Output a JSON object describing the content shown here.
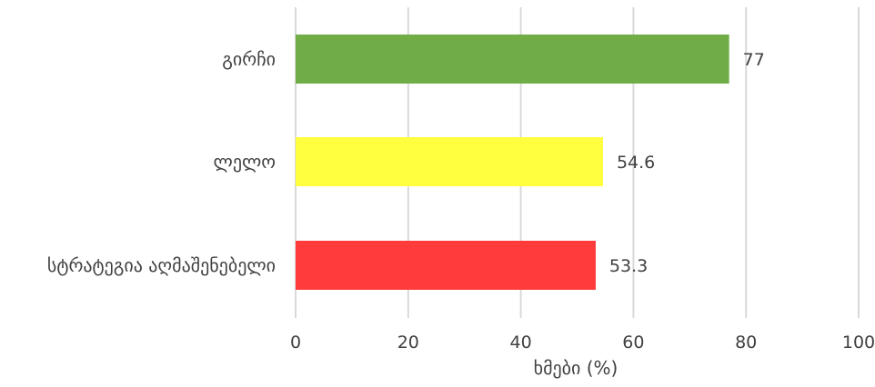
{
  "chart_data": {
    "type": "bar",
    "orientation": "horizontal",
    "categories": [
      "გირჩი",
      "ლელო",
      "სტრატეგია აღმაშენებელი"
    ],
    "values": [
      77,
      54.6,
      53.3
    ],
    "data_labels": [
      "77",
      "54.6",
      "53.3"
    ],
    "colors": [
      "#70ad47",
      "#ffff3f",
      "#ff3b3b"
    ],
    "xlabel": "ხმები (%)",
    "ylabel": "",
    "xlim": [
      0,
      100
    ],
    "x_ticks": [
      0,
      20,
      40,
      60,
      80,
      100
    ],
    "x_tick_labels": [
      "0",
      "20",
      "40",
      "60",
      "80",
      "100"
    ],
    "grid": "vertical",
    "legend": "none"
  }
}
